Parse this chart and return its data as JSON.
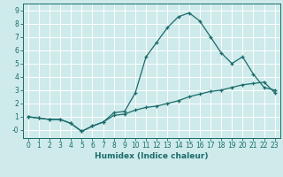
{
  "xlabel": "Humidex (Indice chaleur)",
  "ylabel": "",
  "bg_color": "#ceeaea",
  "line_color": "#1a6b6b",
  "grid_color": "#ffffff",
  "xlim": [
    -0.5,
    23.5
  ],
  "ylim": [
    -0.6,
    9.5
  ],
  "x_ticks": [
    0,
    1,
    2,
    3,
    4,
    5,
    6,
    7,
    8,
    9,
    10,
    11,
    12,
    13,
    14,
    15,
    16,
    17,
    18,
    19,
    20,
    21,
    22,
    23
  ],
  "y_ticks": [
    0,
    1,
    2,
    3,
    4,
    5,
    6,
    7,
    8,
    9
  ],
  "y_tick_labels": [
    "-0",
    "1",
    "2",
    "3",
    "4",
    "5",
    "6",
    "7",
    "8",
    "9"
  ],
  "line1_x": [
    0,
    1,
    2,
    3,
    4,
    5,
    6,
    7,
    8,
    9,
    10,
    11,
    12,
    13,
    14,
    15,
    16,
    17,
    18,
    19,
    20,
    21,
    22,
    23
  ],
  "line1_y": [
    1.0,
    0.9,
    0.8,
    0.8,
    0.5,
    -0.1,
    0.3,
    0.6,
    1.3,
    1.4,
    2.8,
    5.5,
    6.6,
    7.7,
    8.5,
    8.8,
    8.2,
    7.0,
    5.8,
    5.0,
    5.5,
    4.2,
    3.2,
    3.0
  ],
  "line2_x": [
    0,
    1,
    2,
    3,
    4,
    5,
    6,
    7,
    8,
    9,
    10,
    11,
    12,
    13,
    14,
    15,
    16,
    17,
    18,
    19,
    20,
    21,
    22,
    23
  ],
  "line2_y": [
    1.0,
    0.9,
    0.8,
    0.8,
    0.5,
    -0.1,
    0.3,
    0.6,
    1.1,
    1.2,
    1.5,
    1.7,
    1.8,
    2.0,
    2.2,
    2.5,
    2.7,
    2.9,
    3.0,
    3.2,
    3.4,
    3.5,
    3.6,
    2.8
  ],
  "tick_fontsize": 5.5,
  "xlabel_fontsize": 6.5,
  "linewidth": 0.9,
  "markersize": 3.5
}
